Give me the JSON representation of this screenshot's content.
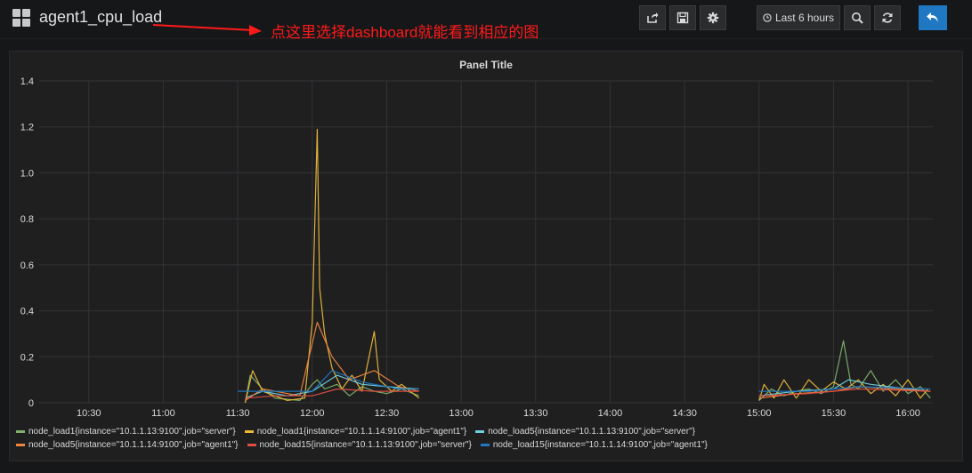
{
  "header": {
    "title": "agent1_cpu_load",
    "annotation": "点这里选择dashboard就能看到相应的图",
    "time_range_label": "Last 6 hours",
    "buttons": [
      "share-icon",
      "save-icon",
      "gear-icon",
      "clock-icon",
      "zoom-out-icon",
      "refresh-icon",
      "back-icon"
    ]
  },
  "panel": {
    "title": "Panel Title"
  },
  "colors": {
    "series": [
      "#7eb26d",
      "#eab839",
      "#6ed0e0",
      "#ef843c",
      "#e24d42",
      "#1f78c1"
    ],
    "annotation": "#ff1a1a",
    "accent": "#1f78c1"
  },
  "chart_data": {
    "type": "line",
    "title": "Panel Title",
    "xlabel": "",
    "ylabel": "",
    "ylim": [
      0,
      1.4
    ],
    "yticks": [
      "0",
      "0.2",
      "0.4",
      "0.6",
      "0.8",
      "1.0",
      "1.2",
      "1.4"
    ],
    "xticks": [
      "10:30",
      "11:00",
      "11:30",
      "12:00",
      "12:30",
      "13:00",
      "13:30",
      "14:00",
      "14:30",
      "15:00",
      "15:30",
      "16:00"
    ],
    "xlim": [
      "10:10",
      "16:10"
    ],
    "grid": true,
    "legend_position": "bottom",
    "series": [
      {
        "name": "node_load1{instance=\"10.1.1.13:9100\",job=\"server\"}",
        "points": [
          [
            "11:33",
            0
          ],
          [
            "11:35",
            0.12
          ],
          [
            "11:40",
            0.06
          ],
          [
            "11:45",
            0.02
          ],
          [
            "11:55",
            0.01
          ],
          [
            "12:00",
            0.08
          ],
          [
            "12:02",
            0.1
          ],
          [
            "12:05",
            0.06
          ],
          [
            "12:10",
            0.08
          ],
          [
            "12:15",
            0.03
          ],
          [
            "12:20",
            0.07
          ],
          [
            "12:25",
            0.05
          ],
          [
            "12:30",
            0.04
          ],
          [
            "12:36",
            0.06
          ],
          [
            "12:43",
            0.03
          ],
          [
            "15:00",
            0.01
          ],
          [
            "15:05",
            0.06
          ],
          [
            "15:10",
            0.03
          ],
          [
            "15:15",
            0.05
          ],
          [
            "15:20",
            0.06
          ],
          [
            "15:25",
            0.04
          ],
          [
            "15:30",
            0.07
          ],
          [
            "15:34",
            0.27
          ],
          [
            "15:37",
            0.08
          ],
          [
            "15:40",
            0.06
          ],
          [
            "15:45",
            0.14
          ],
          [
            "15:50",
            0.05
          ],
          [
            "15:55",
            0.1
          ],
          [
            "16:00",
            0.04
          ],
          [
            "16:05",
            0.07
          ],
          [
            "16:09",
            0.02
          ]
        ]
      },
      {
        "name": "node_load1{instance=\"10.1.1.14:9100\",job=\"agent1\"}",
        "points": [
          [
            "11:33",
            0
          ],
          [
            "11:36",
            0.14
          ],
          [
            "11:40",
            0.05
          ],
          [
            "11:50",
            0.01
          ],
          [
            "11:57",
            0.02
          ],
          [
            "12:00",
            0.35
          ],
          [
            "12:02",
            1.19
          ],
          [
            "12:03",
            0.5
          ],
          [
            "12:05",
            0.3
          ],
          [
            "12:08",
            0.15
          ],
          [
            "12:12",
            0.06
          ],
          [
            "12:16",
            0.12
          ],
          [
            "12:20",
            0.05
          ],
          [
            "12:25",
            0.31
          ],
          [
            "12:27",
            0.1
          ],
          [
            "12:32",
            0.05
          ],
          [
            "12:36",
            0.08
          ],
          [
            "12:43",
            0.02
          ],
          [
            "15:00",
            0.01
          ],
          [
            "15:02",
            0.08
          ],
          [
            "15:06",
            0.02
          ],
          [
            "15:10",
            0.1
          ],
          [
            "15:15",
            0.02
          ],
          [
            "15:20",
            0.1
          ],
          [
            "15:25",
            0.05
          ],
          [
            "15:30",
            0.09
          ],
          [
            "15:35",
            0.06
          ],
          [
            "15:40",
            0.1
          ],
          [
            "15:45",
            0.04
          ],
          [
            "15:50",
            0.08
          ],
          [
            "15:55",
            0.03
          ],
          [
            "16:00",
            0.1
          ],
          [
            "16:05",
            0.02
          ],
          [
            "16:08",
            0.06
          ]
        ]
      },
      {
        "name": "node_load5{instance=\"10.1.1.13:9100\",job=\"server\"}",
        "points": [
          [
            "11:33",
            0.02
          ],
          [
            "11:40",
            0.05
          ],
          [
            "11:50",
            0.03
          ],
          [
            "12:00",
            0.05
          ],
          [
            "12:10",
            0.12
          ],
          [
            "12:20",
            0.08
          ],
          [
            "12:30",
            0.07
          ],
          [
            "12:43",
            0.06
          ],
          [
            "15:00",
            0.03
          ],
          [
            "15:15",
            0.05
          ],
          [
            "15:30",
            0.06
          ],
          [
            "15:36",
            0.1
          ],
          [
            "15:45",
            0.08
          ],
          [
            "16:00",
            0.06
          ],
          [
            "16:09",
            0.05
          ]
        ]
      },
      {
        "name": "node_load5{instance=\"10.1.1.14:9100\",job=\"agent1\"}",
        "points": [
          [
            "11:33",
            0.01
          ],
          [
            "11:40",
            0.06
          ],
          [
            "11:55",
            0.03
          ],
          [
            "12:02",
            0.35
          ],
          [
            "12:08",
            0.2
          ],
          [
            "12:15",
            0.1
          ],
          [
            "12:25",
            0.14
          ],
          [
            "12:35",
            0.07
          ],
          [
            "12:43",
            0.05
          ],
          [
            "15:00",
            0.02
          ],
          [
            "15:15",
            0.04
          ],
          [
            "15:30",
            0.05
          ],
          [
            "15:40",
            0.07
          ],
          [
            "15:55",
            0.06
          ],
          [
            "16:09",
            0.05
          ]
        ]
      },
      {
        "name": "node_load15{instance=\"10.1.1.13:9100\",job=\"server\"}",
        "points": [
          [
            "11:33",
            0.02
          ],
          [
            "11:45",
            0.03
          ],
          [
            "12:00",
            0.03
          ],
          [
            "12:10",
            0.06
          ],
          [
            "12:25",
            0.05
          ],
          [
            "12:43",
            0.05
          ],
          [
            "15:00",
            0.03
          ],
          [
            "15:20",
            0.04
          ],
          [
            "15:40",
            0.06
          ],
          [
            "16:09",
            0.05
          ]
        ]
      },
      {
        "name": "node_load15{instance=\"10.1.1.14:9100\",job=\"agent1\"}",
        "points": [
          [
            "11:30",
            0.05
          ],
          [
            "11:45",
            0.05
          ],
          [
            "12:00",
            0.05
          ],
          [
            "12:08",
            0.14
          ],
          [
            "12:20",
            0.09
          ],
          [
            "12:35",
            0.06
          ],
          [
            "12:43",
            0.06
          ],
          [
            "15:00",
            0.05
          ],
          [
            "15:20",
            0.05
          ],
          [
            "15:40",
            0.07
          ],
          [
            "16:09",
            0.06
          ]
        ]
      }
    ]
  }
}
